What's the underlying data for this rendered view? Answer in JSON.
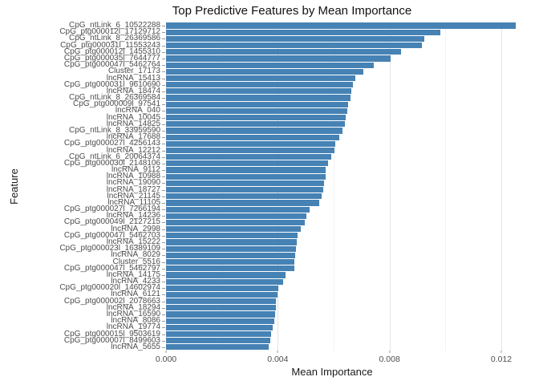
{
  "title": "Top Predictive Features by Mean Importance",
  "axes": {
    "x_title": "Mean Importance",
    "y_title": "Feature",
    "x_tick_labels": [
      "0.000",
      "0.004",
      "0.008",
      "0.012"
    ]
  },
  "colors": {
    "bar": "#4682B4",
    "grid_major": "#e3e3e3",
    "grid_minor": "#f1f1f1",
    "tick": "#999999",
    "axis_text": "#4d4d4d",
    "title_text": "#111111"
  },
  "chart_data": {
    "type": "bar",
    "orientation": "horizontal",
    "title": "Top Predictive Features by Mean Importance",
    "xlabel": "Mean Importance",
    "ylabel": "Feature",
    "xlim": [
      0,
      0.0131
    ],
    "xticks": [
      0.0,
      0.004,
      0.008,
      0.012
    ],
    "xticks_minor": [
      0.002,
      0.006,
      0.01
    ],
    "grid": true,
    "legend": false,
    "categories": [
      "CpG_ntLink_6_10522288",
      "CpG_ptg000012l_17129712",
      "CpG_ntLink_8_26369586",
      "CpG_ptg000031l_11553243",
      "CpG_ptg000012l_1455310",
      "CpG_ptg000035l_7644777",
      "CpG_ptg000047l_5462764",
      "Cluster_17173",
      "lncRNA_15413",
      "CpG_ptg000031l_9610690",
      "lncRNA_18474",
      "CpG_ntLink_8_26369584",
      "CpG_ptg000009l_97541",
      "lncRNA_040",
      "lncRNA_10045",
      "lncRNA_14825",
      "CpG_ntLink_8_33959590",
      "lncRNA_17688",
      "CpG_ptg000027l_4256143",
      "lncRNA_12212",
      "CpG_ntLink_6_20064374",
      "CpG_ptg000030l_2148106",
      "lncRNA_9112",
      "lncRNA_10988",
      "lncRNA_19090",
      "lncRNA_18727",
      "lncRNA_21145",
      "lncRNA_11105",
      "CpG_ptg000027l_7266194",
      "lncRNA_14236",
      "CpG_ptg000049l_2127215",
      "lncRNA_2998",
      "CpG_ptg000047l_5462703",
      "lncRNA_15222",
      "CpG_ptg000023l_16389109",
      "lncRNA_8029",
      "Cluster_5516",
      "CpG_ptg000047l_5462797",
      "lncRNA_14175",
      "lncRNA_4233",
      "CpG_ptg000020l_14602974",
      "lncRNA_6121",
      "CpG_ptg000002l_2078663",
      "lncRNA_18294",
      "lncRNA_16590",
      "lncRNA_8086",
      "lncRNA_19774",
      "CpG_ptg000015l_9503619",
      "CpG_ptg000007l_8499603",
      "lncRNA_5655"
    ],
    "values": [
      0.01252,
      0.00982,
      0.00924,
      0.00916,
      0.00841,
      0.00804,
      0.00744,
      0.00706,
      0.00677,
      0.00668,
      0.00662,
      0.0066,
      0.00653,
      0.0065,
      0.00642,
      0.0064,
      0.00631,
      0.00619,
      0.00607,
      0.00604,
      0.00592,
      0.0058,
      0.00572,
      0.0057,
      0.00566,
      0.00562,
      0.00556,
      0.00548,
      0.00514,
      0.00501,
      0.00497,
      0.00482,
      0.0047,
      0.00468,
      0.00464,
      0.00463,
      0.0046,
      0.00458,
      0.00428,
      0.0042,
      0.00403,
      0.00398,
      0.00393,
      0.00392,
      0.0039,
      0.00388,
      0.00382,
      0.00375,
      0.00374,
      0.00367
    ]
  }
}
